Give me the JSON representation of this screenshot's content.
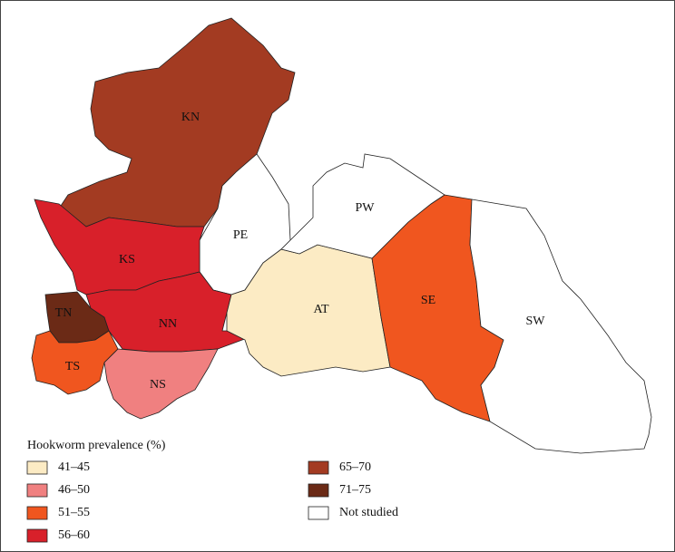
{
  "map": {
    "regions": [
      {
        "label": "KN",
        "color": "#a33b22"
      },
      {
        "label": "PE",
        "color": "#ffffff"
      },
      {
        "label": "KS",
        "color": "#d8202a"
      },
      {
        "label": "TN",
        "color": "#6b2a16"
      },
      {
        "label": "NN",
        "color": "#d8202a"
      },
      {
        "label": "TS",
        "color": "#f0561f"
      },
      {
        "label": "NS",
        "color": "#f08080"
      },
      {
        "label": "AT",
        "color": "#fcebc4"
      },
      {
        "label": "SE",
        "color": "#f0561f"
      },
      {
        "label": "PW",
        "color": "#ffffff"
      },
      {
        "label": "SW",
        "color": "#ffffff"
      }
    ]
  },
  "legend": {
    "title": "Hookworm prevalence (%)",
    "items": [
      {
        "label": "41–45",
        "color": "#fcebc4"
      },
      {
        "label": "46–50",
        "color": "#f08080"
      },
      {
        "label": "51–55",
        "color": "#f0561f"
      },
      {
        "label": "56–60",
        "color": "#d8202a"
      },
      {
        "label": "65–70",
        "color": "#a33b22"
      },
      {
        "label": "71–75",
        "color": "#6b2a16"
      },
      {
        "label": "Not studied",
        "color": "#ffffff"
      }
    ]
  }
}
